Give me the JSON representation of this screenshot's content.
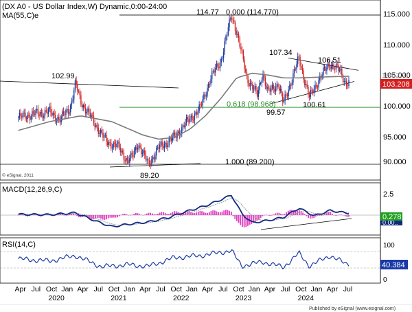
{
  "chart_data": [
    {
      "type": "candlestick",
      "title": "(DX A0 - US Dollar Index,W) Dynamic,0:00-24:00",
      "series": [
        {
          "name": "MA(55,C)e"
        }
      ],
      "y_ticks": [
        "115.000",
        "110.000",
        "105.000",
        "100.000",
        "95.000",
        "90.000"
      ],
      "ylim": [
        88,
        116.5
      ],
      "last_price": "103.208",
      "ma_value": "104.270",
      "annotations": {
        "high_2022": "114.77",
        "fib_0": "0.000 (114.770)",
        "fib_618": "0.618 (98.968)",
        "fib_1": "1.000 (89.200)",
        "low_2021": "89.20",
        "high_2020": "102.99",
        "high_2023": "107.34",
        "high_2024": "106.51",
        "low_2023": "99.57",
        "low_2023b": "100.61"
      },
      "levels": {
        "fib_0": 114.77,
        "fib_618": 98.968,
        "fib_1": 89.2
      },
      "keypoints": [
        {
          "date": "2019-04",
          "price": 97.2
        },
        {
          "date": "2019-07",
          "price": 97.8
        },
        {
          "date": "2019-10",
          "price": 98.2
        },
        {
          "date": "2019-12",
          "price": 96.8
        },
        {
          "date": "2020-02",
          "price": 99.0
        },
        {
          "date": "2020-03",
          "price": 102.99
        },
        {
          "date": "2020-04",
          "price": 100.0
        },
        {
          "date": "2020-06",
          "price": 97.2
        },
        {
          "date": "2020-09",
          "price": 93.0
        },
        {
          "date": "2020-11",
          "price": 92.4
        },
        {
          "date": "2021-01",
          "price": 89.8
        },
        {
          "date": "2021-02",
          "price": 90.5
        },
        {
          "date": "2021-03",
          "price": 92.8
        },
        {
          "date": "2021-05",
          "price": 89.2
        },
        {
          "date": "2021-07",
          "price": 92.0
        },
        {
          "date": "2021-10",
          "price": 93.8
        },
        {
          "date": "2021-12",
          "price": 96.0
        },
        {
          "date": "2022-03",
          "price": 98.8
        },
        {
          "date": "2022-05",
          "price": 104.0
        },
        {
          "date": "2022-07",
          "price": 107.0
        },
        {
          "date": "2022-09",
          "price": 114.77
        },
        {
          "date": "2022-10",
          "price": 112.0
        },
        {
          "date": "2022-12",
          "price": 104.0
        },
        {
          "date": "2023-02",
          "price": 101.0
        },
        {
          "date": "2023-03",
          "price": 105.0
        },
        {
          "date": "2023-04",
          "price": 101.5
        },
        {
          "date": "2023-06",
          "price": 103.0
        },
        {
          "date": "2023-07",
          "price": 99.57
        },
        {
          "date": "2023-10",
          "price": 107.34
        },
        {
          "date": "2023-12",
          "price": 100.61
        },
        {
          "date": "2024-02",
          "price": 104.0
        },
        {
          "date": "2024-04",
          "price": 106.51
        },
        {
          "date": "2024-06",
          "price": 105.0
        },
        {
          "date": "2024-07",
          "price": 103.208
        }
      ],
      "ma_keypoints": [
        {
          "date": "2019-04",
          "price": 95.0
        },
        {
          "date": "2019-10",
          "price": 96.5
        },
        {
          "date": "2020-04",
          "price": 97.5
        },
        {
          "date": "2020-10",
          "price": 96.5
        },
        {
          "date": "2021-04",
          "price": 94.2
        },
        {
          "date": "2021-07",
          "price": 93.5
        },
        {
          "date": "2021-10",
          "price": 93.8
        },
        {
          "date": "2022-01",
          "price": 95.2
        },
        {
          "date": "2022-04",
          "price": 97.5
        },
        {
          "date": "2022-07",
          "price": 100.5
        },
        {
          "date": "2022-10",
          "price": 104.0
        },
        {
          "date": "2023-01",
          "price": 104.8
        },
        {
          "date": "2023-04",
          "price": 104.5
        },
        {
          "date": "2023-07",
          "price": 104.0
        },
        {
          "date": "2023-10",
          "price": 104.0
        },
        {
          "date": "2024-01",
          "price": 104.1
        },
        {
          "date": "2024-04",
          "price": 104.2
        },
        {
          "date": "2024-07",
          "price": 104.27
        }
      ],
      "watermark": "© eSignal, 2011"
    },
    {
      "type": "line",
      "title": "MACD(12,26,9,C)",
      "y_ticks": [
        "2.5",
        "0"
      ],
      "value": "0.278",
      "value2": "0.00..",
      "keypoints": [
        {
          "date": "2019-04",
          "value": 0.1
        },
        {
          "date": "2019-10",
          "value": 0.05
        },
        {
          "date": "2020-03",
          "value": 0.3
        },
        {
          "date": "2020-07",
          "value": -0.8
        },
        {
          "date": "2020-10",
          "value": -1.5
        },
        {
          "date": "2021-01",
          "value": -1.2
        },
        {
          "date": "2021-05",
          "value": -0.9
        },
        {
          "date": "2021-09",
          "value": -0.3
        },
        {
          "date": "2021-12",
          "value": 0.4
        },
        {
          "date": "2022-04",
          "value": 1.2
        },
        {
          "date": "2022-07",
          "value": 2.0
        },
        {
          "date": "2022-09",
          "value": 2.6
        },
        {
          "date": "2022-11",
          "value": 0.2
        },
        {
          "date": "2023-01",
          "value": -1.0
        },
        {
          "date": "2023-04",
          "value": -0.7
        },
        {
          "date": "2023-07",
          "value": -0.3
        },
        {
          "date": "2023-10",
          "value": 0.9
        },
        {
          "date": "2024-01",
          "value": -0.1
        },
        {
          "date": "2024-04",
          "value": 0.6
        },
        {
          "date": "2024-07",
          "value": 0.278
        }
      ]
    },
    {
      "type": "line",
      "title": "RSI(14,C)",
      "y_ticks": [
        "100",
        "0"
      ],
      "value": "40.384",
      "keypoints": [
        {
          "date": "2019-04",
          "value": 52
        },
        {
          "date": "2019-10",
          "value": 47
        },
        {
          "date": "2020-03",
          "value": 60
        },
        {
          "date": "2020-08",
          "value": 33
        },
        {
          "date": "2021-01",
          "value": 38
        },
        {
          "date": "2021-05",
          "value": 34
        },
        {
          "date": "2021-10",
          "value": 55
        },
        {
          "date": "2022-03",
          "value": 60
        },
        {
          "date": "2022-09",
          "value": 72
        },
        {
          "date": "2022-11",
          "value": 35
        },
        {
          "date": "2023-03",
          "value": 45
        },
        {
          "date": "2023-07",
          "value": 32
        },
        {
          "date": "2023-10",
          "value": 66
        },
        {
          "date": "2023-12",
          "value": 35
        },
        {
          "date": "2024-04",
          "value": 60
        },
        {
          "date": "2024-07",
          "value": 40.384
        }
      ]
    }
  ],
  "x_axis": {
    "months": [
      {
        "label": "Apr",
        "date": "2019-04"
      },
      {
        "label": "Jul",
        "date": "2019-07"
      },
      {
        "label": "Oct",
        "date": "2019-10"
      },
      {
        "label": "Jan",
        "date": "2020-01"
      },
      {
        "label": "Apr",
        "date": "2020-04"
      },
      {
        "label": "Jul",
        "date": "2020-07"
      },
      {
        "label": "Oct",
        "date": "2020-10"
      },
      {
        "label": "Jan",
        "date": "2021-01"
      },
      {
        "label": "Apr",
        "date": "2021-04"
      },
      {
        "label": "Jul",
        "date": "2021-07"
      },
      {
        "label": "Oct",
        "date": "2021-10"
      },
      {
        "label": "Jan",
        "date": "2022-01"
      },
      {
        "label": "Apr",
        "date": "2022-04"
      },
      {
        "label": "Jul",
        "date": "2022-07"
      },
      {
        "label": "Oct",
        "date": "2022-10"
      },
      {
        "label": "Jan",
        "date": "2023-01"
      },
      {
        "label": "Apr",
        "date": "2023-04"
      },
      {
        "label": "Jul",
        "date": "2023-07"
      },
      {
        "label": "Oct",
        "date": "2023-10"
      },
      {
        "label": "Jan",
        "date": "2024-01"
      },
      {
        "label": "Apr",
        "date": "2024-04"
      },
      {
        "label": "Jul",
        "date": "2024-07"
      }
    ],
    "years": [
      {
        "label": "2020",
        "date": "2019-10"
      },
      {
        "label": "2021",
        "date": "2020-10"
      },
      {
        "label": "2022",
        "date": "2021-10"
      },
      {
        "label": "2023",
        "date": "2022-10"
      },
      {
        "label": "2024",
        "date": "2023-10"
      }
    ]
  },
  "footer": "Published by eSignal (www.esignal.com)",
  "colors": {
    "up": "#1a3a9c",
    "down": "#d42020",
    "ma": "#7a7a7a",
    "fib_line": "#3a9a3a",
    "fib_text": "#2a8a2a",
    "macd_line": "#102a80",
    "macd_signal": "#9a9a9a",
    "macd_hist": "#e040c0",
    "rsi_line": "#1a3aa8",
    "value_box": "#d42020",
    "macd_box": "#20a020"
  }
}
